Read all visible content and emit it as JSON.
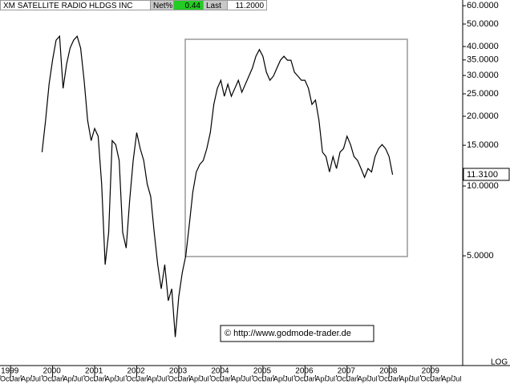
{
  "chart_data": {
    "type": "line",
    "title": "XM SATELLITE RADIO HLDGS INC",
    "header": {
      "net_label": "Net%",
      "net_value": "0.44",
      "last_label": "Last",
      "last_value": "11.2000"
    },
    "annotations": [
      "© http://www.godmode-trader.de",
      "11.3100"
    ],
    "scale_label": "LOG",
    "log_scale": true,
    "grid": false,
    "xlim": [
      "1998-10",
      "2009-10"
    ],
    "ylim": [
      1.68,
      63.5
    ],
    "yticks": [
      {
        "value": 60,
        "label": "60.0000"
      },
      {
        "value": 50,
        "label": "50.0000"
      },
      {
        "value": 40,
        "label": "40.0000"
      },
      {
        "value": 35,
        "label": "35.0000"
      },
      {
        "value": 30,
        "label": "30.0000"
      },
      {
        "value": 25,
        "label": "25.0000"
      },
      {
        "value": 20,
        "label": "20.0000"
      },
      {
        "value": 15,
        "label": "15.0000"
      },
      {
        "value": 10,
        "label": "10.0000"
      },
      {
        "value": 5,
        "label": "5.0000"
      }
    ],
    "xticks": [
      {
        "value": "1999-01",
        "label": "1999"
      },
      {
        "value": "2000-01",
        "label": "2000"
      },
      {
        "value": "2001-01",
        "label": "2001"
      },
      {
        "value": "2002-01",
        "label": "2002"
      },
      {
        "value": "2003-01",
        "label": "2003"
      },
      {
        "value": "2004-01",
        "label": "2004"
      },
      {
        "value": "2005-01",
        "label": "2005"
      },
      {
        "value": "2006-01",
        "label": "2006"
      },
      {
        "value": "2007-01",
        "label": "2007"
      },
      {
        "value": "2008-01",
        "label": "2008"
      },
      {
        "value": "2009-01",
        "label": "2009"
      }
    ],
    "xticks_minor": [
      {
        "value": "1998-10",
        "label": "Oct"
      },
      {
        "value": "1999-01",
        "label": "Jan"
      },
      {
        "value": "1999-04",
        "label": "Apr"
      },
      {
        "value": "1999-07",
        "label": "Jul"
      },
      {
        "value": "1999-10",
        "label": "Oct"
      },
      {
        "value": "2000-01",
        "label": "Jan"
      },
      {
        "value": "2000-04",
        "label": "Apr"
      },
      {
        "value": "2000-07",
        "label": "Jul"
      },
      {
        "value": "2000-10",
        "label": "Oct"
      },
      {
        "value": "2001-01",
        "label": "Jan"
      },
      {
        "value": "2001-04",
        "label": "Apr"
      },
      {
        "value": "2001-07",
        "label": "Jul"
      },
      {
        "value": "2001-10",
        "label": "Oct"
      },
      {
        "value": "2002-01",
        "label": "Jan"
      },
      {
        "value": "2002-04",
        "label": "Apr"
      },
      {
        "value": "2002-07",
        "label": "Jul"
      },
      {
        "value": "2002-10",
        "label": "Oct"
      },
      {
        "value": "2003-01",
        "label": "Jan"
      },
      {
        "value": "2003-04",
        "label": "Apr"
      },
      {
        "value": "2003-07",
        "label": "Jul"
      },
      {
        "value": "2003-10",
        "label": "Oct"
      },
      {
        "value": "2004-01",
        "label": "Jan"
      },
      {
        "value": "2004-04",
        "label": "Apr"
      },
      {
        "value": "2004-07",
        "label": "Jul"
      },
      {
        "value": "2004-10",
        "label": "Oct"
      },
      {
        "value": "2005-01",
        "label": "Jan"
      },
      {
        "value": "2005-04",
        "label": "Apr"
      },
      {
        "value": "2005-07",
        "label": "Jul"
      },
      {
        "value": "2005-10",
        "label": "Oct"
      },
      {
        "value": "2006-01",
        "label": "Jan"
      },
      {
        "value": "2006-04",
        "label": "Apr"
      },
      {
        "value": "2006-07",
        "label": "Jul"
      },
      {
        "value": "2006-10",
        "label": "Oct"
      },
      {
        "value": "2007-01",
        "label": "Jan"
      },
      {
        "value": "2007-04",
        "label": "Apr"
      },
      {
        "value": "2007-07",
        "label": "Jul"
      },
      {
        "value": "2007-10",
        "label": "Oct"
      },
      {
        "value": "2008-01",
        "label": "Jan"
      },
      {
        "value": "2008-04",
        "label": "Apr"
      },
      {
        "value": "2008-07",
        "label": "Jul"
      },
      {
        "value": "2008-10",
        "label": "Oct"
      },
      {
        "value": "2009-01",
        "label": "Jan"
      },
      {
        "value": "2009-04",
        "label": "Apr"
      },
      {
        "value": "2009-07",
        "label": "Jul"
      }
    ],
    "x": [
      "1999-10",
      "1999-11",
      "1999-12",
      "2000-01",
      "2000-02",
      "2000-03",
      "2000-04",
      "2000-05",
      "2000-06",
      "2000-07",
      "2000-08",
      "2000-09",
      "2000-10",
      "2000-11",
      "2000-12",
      "2001-01",
      "2001-02",
      "2001-03",
      "2001-04",
      "2001-05",
      "2001-06",
      "2001-07",
      "2001-08",
      "2001-09",
      "2001-10",
      "2001-11",
      "2001-12",
      "2002-01",
      "2002-02",
      "2002-03",
      "2002-04",
      "2002-05",
      "2002-06",
      "2002-07",
      "2002-08",
      "2002-09",
      "2002-10",
      "2002-11",
      "2002-12",
      "2003-01",
      "2003-02",
      "2003-03",
      "2003-04",
      "2003-05",
      "2003-06",
      "2003-07",
      "2003-08",
      "2003-09",
      "2003-10",
      "2003-11",
      "2003-12",
      "2004-01",
      "2004-02",
      "2004-03",
      "2004-04",
      "2004-05",
      "2004-06",
      "2004-07",
      "2004-08",
      "2004-09",
      "2004-10",
      "2004-11",
      "2004-12",
      "2005-01",
      "2005-02",
      "2005-03",
      "2005-04",
      "2005-05",
      "2005-06",
      "2005-07",
      "2005-08",
      "2005-09",
      "2005-10",
      "2005-11",
      "2005-12",
      "2006-01",
      "2006-02",
      "2006-03",
      "2006-04",
      "2006-05",
      "2006-06",
      "2006-07",
      "2006-08",
      "2006-09",
      "2006-10",
      "2006-11",
      "2006-12",
      "2007-01",
      "2007-02",
      "2007-03",
      "2007-04",
      "2007-05",
      "2007-06",
      "2007-07",
      "2007-08",
      "2007-09",
      "2007-10",
      "2007-11",
      "2007-12",
      "2008-01",
      "2008-02"
    ],
    "series": [
      {
        "name": "XM SATELLITE RADIO HLDGS INC",
        "color": "#000000",
        "values": [
          14.0,
          19.2,
          27.5,
          35,
          42.6,
          44.3,
          26.4,
          33.6,
          39.4,
          42.6,
          44.3,
          39.4,
          28.6,
          19.2,
          15.7,
          17.7,
          16.4,
          10.2,
          4.58,
          6.3,
          15.7,
          15.1,
          12.9,
          6.3,
          5.4,
          8.7,
          12.9,
          17.0,
          14.5,
          12.9,
          10.2,
          9.0,
          6.3,
          4.58,
          3.6,
          4.58,
          3.2,
          3.6,
          2.23,
          3.33,
          4.23,
          5.0,
          6.8,
          9.4,
          11.5,
          12.4,
          12.9,
          14.5,
          17.0,
          22.5,
          26.4,
          28.6,
          24.4,
          27.5,
          24.4,
          26.4,
          28.6,
          25.4,
          27.5,
          29.8,
          32.3,
          36.3,
          38.8,
          36.3,
          31.0,
          28.6,
          29.8,
          32.3,
          34.9,
          36.3,
          34.9,
          34.9,
          31.0,
          29.8,
          28.6,
          28.6,
          26.4,
          22.5,
          23.5,
          19.2,
          14.0,
          13.4,
          11.5,
          13.4,
          11.9,
          14.0,
          14.5,
          16.4,
          15.1,
          13.4,
          12.9,
          11.9,
          10.9,
          11.9,
          11.5,
          13.4,
          14.5,
          15.1,
          14.5,
          13.4,
          11.2
        ]
      }
    ]
  }
}
